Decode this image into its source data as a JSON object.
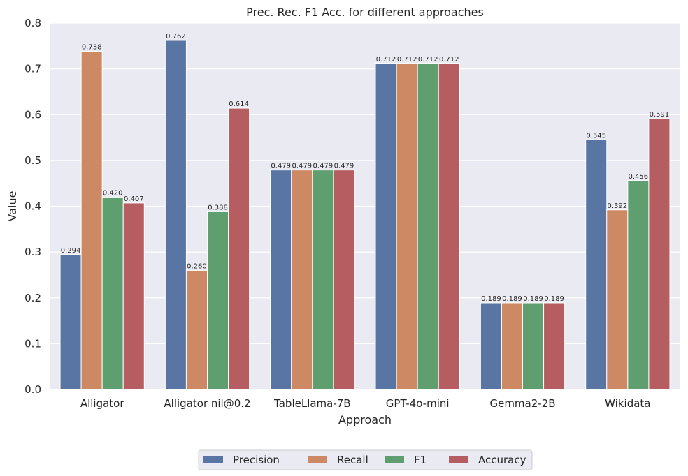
{
  "chart_data": {
    "type": "bar",
    "title": "Prec. Rec. F1 Acc. for different approaches",
    "xlabel": "Approach",
    "ylabel": "Value",
    "ylim": [
      0,
      0.8
    ],
    "yticks": [
      "0.0",
      "0.1",
      "0.2",
      "0.3",
      "0.4",
      "0.5",
      "0.6",
      "0.7",
      "0.8"
    ],
    "grid": true,
    "legend_position": "bottom",
    "categories": [
      "Alligator",
      "Alligator nil@0.2",
      "TableLlama-7B",
      "GPT-4o-mini",
      "Gemma2-2B",
      "Wikidata"
    ],
    "series": [
      {
        "name": "Precision",
        "color": "#5875a4",
        "values": [
          0.294,
          0.762,
          0.479,
          0.712,
          0.189,
          0.545
        ],
        "labels": [
          "0.294",
          "0.762",
          "0.479",
          "0.712",
          "0.189",
          "0.545"
        ]
      },
      {
        "name": "Recall",
        "color": "#cc8963",
        "values": [
          0.738,
          0.26,
          0.479,
          0.712,
          0.189,
          0.392
        ],
        "labels": [
          "0.738",
          "0.260",
          "0.479",
          "0.712",
          "0.189",
          "0.392"
        ]
      },
      {
        "name": "F1",
        "color": "#5f9e6e",
        "values": [
          0.42,
          0.388,
          0.479,
          0.712,
          0.189,
          0.456
        ],
        "labels": [
          "0.420",
          "0.388",
          "0.479",
          "0.712",
          "0.189",
          "0.456"
        ]
      },
      {
        "name": "Accuracy",
        "color": "#b55d60",
        "values": [
          0.407,
          0.614,
          0.479,
          0.712,
          0.189,
          0.591
        ],
        "labels": [
          "0.407",
          "0.614",
          "0.479",
          "0.712",
          "0.189",
          "0.591"
        ]
      }
    ],
    "background_color": "#eaeaf2",
    "grid_color": "#ffffff"
  }
}
